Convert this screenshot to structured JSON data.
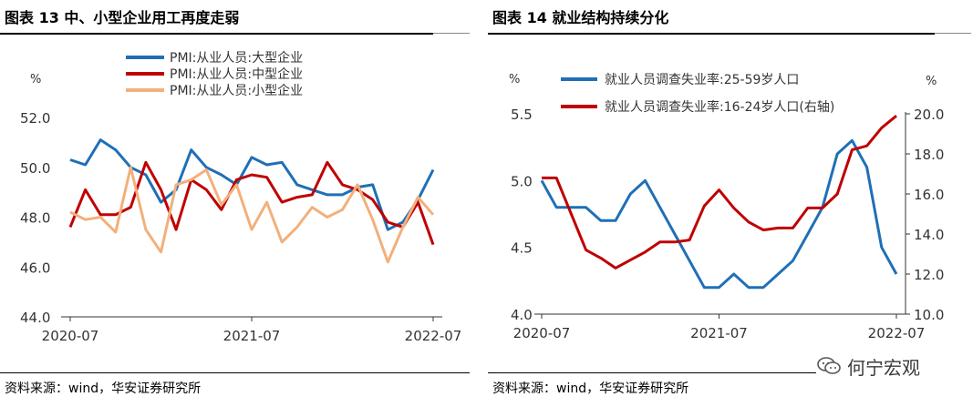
{
  "left": {
    "title": "图表 13  中、小型企业用工再度走弱",
    "source": "资料来源：wind，华安证券研究所",
    "unit": "%"
  },
  "right": {
    "title": "图表 14  就业结构持续分化",
    "source": "资料来源：wind，华安证券研究所",
    "unit_left": "%",
    "unit_right": "%"
  },
  "watermark": {
    "text": "何宁宏观"
  },
  "colors": {
    "blue": "#1f6fb6",
    "red": "#c00000",
    "orange": "#f2b07c"
  },
  "chart_data": [
    {
      "type": "line",
      "title": "中、小型企业用工再度走弱",
      "ylabel": "%",
      "ylim": [
        44.0,
        52.0
      ],
      "yticks": [
        "44.0",
        "46.0",
        "48.0",
        "50.0",
        "52.0"
      ],
      "xticks": [
        "2020-07",
        "2021-07",
        "2022-07"
      ],
      "legend_position": "top",
      "series": [
        {
          "name": "PMI:从业人员:大型企业",
          "color": "#1f6fb6",
          "values": [
            50.3,
            50.1,
            51.1,
            50.7,
            50.0,
            49.7,
            48.6,
            49.1,
            50.7,
            50.0,
            49.7,
            49.3,
            50.4,
            50.1,
            50.2,
            49.3,
            49.1,
            48.9,
            48.9,
            49.2,
            49.3,
            47.5,
            47.8,
            48.7,
            49.9
          ]
        },
        {
          "name": "PMI:从业人员:中型企业",
          "color": "#c00000",
          "values": [
            47.6,
            49.1,
            48.1,
            48.1,
            48.4,
            50.2,
            49.1,
            47.5,
            49.5,
            49.1,
            48.3,
            49.5,
            49.7,
            49.6,
            48.6,
            48.8,
            48.9,
            50.2,
            49.3,
            49.1,
            48.7,
            47.8,
            47.6,
            48.6,
            46.9
          ]
        },
        {
          "name": "PMI:从业人员:小型企业",
          "color": "#f2b07c",
          "values": [
            48.2,
            47.9,
            48.0,
            47.4,
            50.0,
            47.5,
            46.6,
            49.3,
            49.5,
            49.9,
            48.5,
            49.3,
            47.5,
            48.6,
            47.0,
            47.6,
            48.4,
            48.0,
            48.3,
            49.3,
            47.9,
            46.2,
            47.6,
            48.8,
            48.1
          ]
        }
      ]
    },
    {
      "type": "line",
      "title": "就业结构持续分化",
      "ylabel": "%",
      "ylim": [
        4.0,
        5.5
      ],
      "yticks": [
        "4.0",
        "4.5",
        "5.0",
        "5.5"
      ],
      "ylim_right": [
        10.0,
        20.0
      ],
      "yticks_right": [
        "10.0",
        "12.0",
        "14.0",
        "16.0",
        "18.0",
        "20.0"
      ],
      "xticks": [
        "2020-07",
        "2021-07",
        "2022-07"
      ],
      "legend_position": "top-left",
      "series": [
        {
          "name": "就业人员调查失业率:25-59岁人口",
          "color": "#1f6fb6",
          "axis": "left",
          "values": [
            5.0,
            4.8,
            4.8,
            4.8,
            4.7,
            4.7,
            4.9,
            5.0,
            4.8,
            4.6,
            4.4,
            4.2,
            4.2,
            4.3,
            4.2,
            4.2,
            4.3,
            4.4,
            4.6,
            4.8,
            5.2,
            5.3,
            5.1,
            4.5,
            4.3
          ]
        },
        {
          "name": "就业人员调查失业率:16-24岁人口(右轴)",
          "color": "#c00000",
          "axis": "right",
          "values": [
            16.8,
            16.8,
            15.0,
            13.2,
            12.8,
            12.3,
            12.7,
            13.1,
            13.6,
            13.6,
            13.7,
            15.4,
            16.2,
            15.3,
            14.6,
            14.2,
            14.3,
            14.3,
            15.3,
            15.3,
            16.0,
            18.2,
            18.4,
            19.3,
            19.9
          ]
        }
      ]
    }
  ]
}
